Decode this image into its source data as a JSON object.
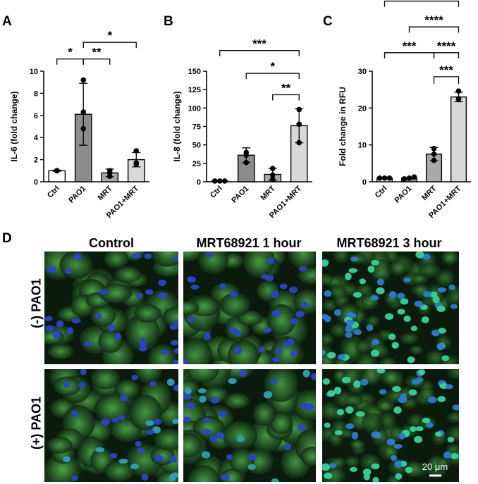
{
  "panels": {
    "A": "A",
    "B": "B",
    "C": "C",
    "D": "D"
  },
  "chart_data": [
    {
      "id": "A",
      "type": "bar",
      "ylabel": "IL-6 (fold change)",
      "categories": [
        "Ctrl",
        "PAO1",
        "MRT",
        "PAO1+MRT"
      ],
      "values": [
        1.0,
        6.1,
        0.8,
        2.0
      ],
      "errors": [
        0.05,
        2.8,
        0.35,
        0.65
      ],
      "points": [
        [
          1.0,
          1.0,
          1.0
        ],
        [
          9.2,
          6.3,
          4.8
        ],
        [
          1.0,
          0.5,
          0.8
        ],
        [
          2.8,
          1.6,
          1.7
        ]
      ],
      "ylim": [
        0,
        10
      ],
      "yticks": [
        0,
        2,
        4,
        6,
        8,
        10
      ],
      "bar_colors": [
        "#ffffff",
        "#8c8c8c",
        "#a9a9a9",
        "#d9d9d9"
      ],
      "significance": [
        {
          "from": 0,
          "to": 1,
          "label": "*",
          "y": 11.1
        },
        {
          "from": 1,
          "to": 2,
          "label": "**",
          "y": 11.1
        },
        {
          "from": 1,
          "to": 3,
          "label": "*",
          "y": 12.6
        }
      ]
    },
    {
      "id": "B",
      "type": "bar",
      "ylabel": "IL-8 (fold change)",
      "categories": [
        "Ctrl",
        "PAO1",
        "MRT",
        "PAO1+MRT"
      ],
      "values": [
        1,
        36,
        10,
        76
      ],
      "errors": [
        0.5,
        10,
        8,
        23
      ],
      "points": [
        [
          1,
          1,
          1
        ],
        [
          40,
          36,
          26
        ],
        [
          18,
          9,
          3
        ],
        [
          98,
          78,
          53
        ]
      ],
      "ylim": [
        0,
        150
      ],
      "yticks": [
        0,
        25,
        50,
        75,
        100,
        125,
        150
      ],
      "bar_colors": [
        "#ffffff",
        "#8c8c8c",
        "#a9a9a9",
        "#d9d9d9"
      ],
      "significance": [
        {
          "from": 2,
          "to": 3,
          "label": "**",
          "y": 118
        },
        {
          "from": 1,
          "to": 3,
          "label": "*",
          "y": 147
        },
        {
          "from": 0,
          "to": 3,
          "label": "***",
          "y": 178
        }
      ]
    },
    {
      "id": "C",
      "type": "bar",
      "ylabel": "Fold change in RFU",
      "categories": [
        "Ctrl",
        "PAO1",
        "MRT",
        "PAO1+MRT"
      ],
      "values": [
        1.0,
        1.0,
        7.5,
        23.0
      ],
      "errors": [
        0.1,
        0.2,
        1.8,
        1.3
      ],
      "points": [
        [
          1.0,
          1.0,
          1.0
        ],
        [
          0.8,
          1.0,
          1.3
        ],
        [
          9.0,
          7.5,
          5.8
        ],
        [
          24.6,
          22.4,
          22.5
        ]
      ],
      "ylim": [
        0,
        30
      ],
      "yticks": [
        0,
        10,
        20,
        30
      ],
      "bar_colors": [
        "#ffffff",
        "#8c8c8c",
        "#a9a9a9",
        "#d9d9d9"
      ],
      "significance": [
        {
          "from": 2,
          "to": 3,
          "label": "****",
          "y": 35
        },
        {
          "from": 0,
          "to": 2,
          "label": "***",
          "y": 35
        },
        {
          "from": 1,
          "to": 3,
          "label": "****",
          "y": 42
        },
        {
          "from": 0,
          "to": 3,
          "label": "****",
          "y": 49
        },
        {
          "from": 2,
          "to": 3,
          "label": "***",
          "y": 28.5,
          "bracket": "down"
        }
      ]
    }
  ],
  "micrographs": {
    "columns": [
      "Control",
      "MRT68921 1 hour",
      "MRT68921 3 hour"
    ],
    "rows": [
      "(-) PAO1",
      "(+) PAO1"
    ],
    "scale_bar": "20 μm"
  }
}
